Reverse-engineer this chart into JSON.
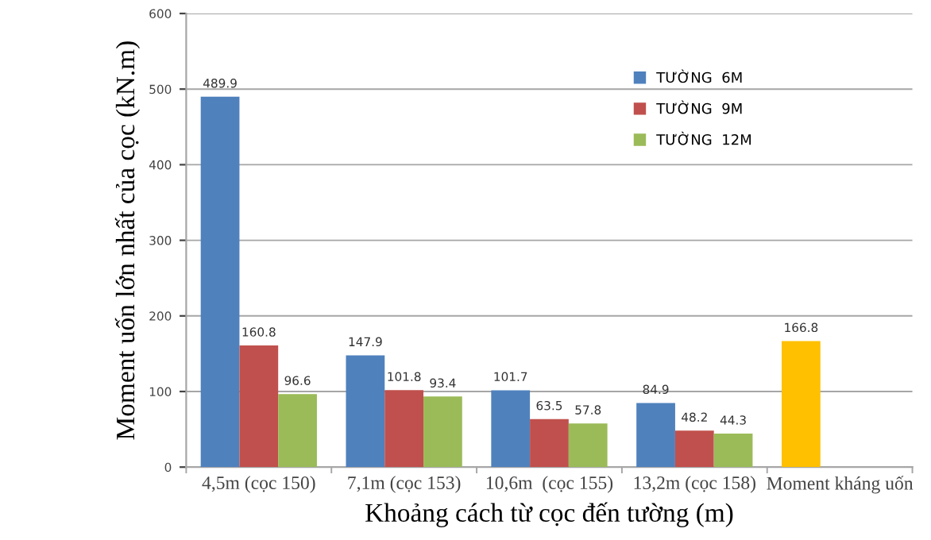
{
  "chart_data": {
    "type": "bar",
    "xlabel": "Khoảng cách từ cọc đến tường (m)",
    "ylabel": "Moment uốn lớn nhất của cọc (kN.m)",
    "categories": [
      "4,5m (cọc 150)",
      "7,1m (cọc 153)",
      "10,6m  (cọc 155)",
      "13,2m (cọc 158)",
      "Moment kháng uốn"
    ],
    "series": [
      {
        "name": "TƯỜNG  6M",
        "color": "#4f81bd",
        "values": [
          489.9,
          147.9,
          101.7,
          84.9,
          null
        ]
      },
      {
        "name": "TƯỜNG  9M",
        "color": "#c0504d",
        "values": [
          160.8,
          101.8,
          63.5,
          48.2,
          null
        ]
      },
      {
        "name": "TƯỜNG  12M",
        "color": "#9bbb59",
        "values": [
          96.6,
          93.4,
          57.8,
          44.3,
          null
        ]
      },
      {
        "color": "#ffc000",
        "values": [
          null,
          null,
          null,
          null,
          166.8
        ]
      }
    ],
    "ylim": [
      0,
      600
    ],
    "yticks": [
      0,
      100,
      200,
      300,
      400,
      500,
      600
    ],
    "grid": "y",
    "legend": "top right",
    "data_labels": true
  }
}
